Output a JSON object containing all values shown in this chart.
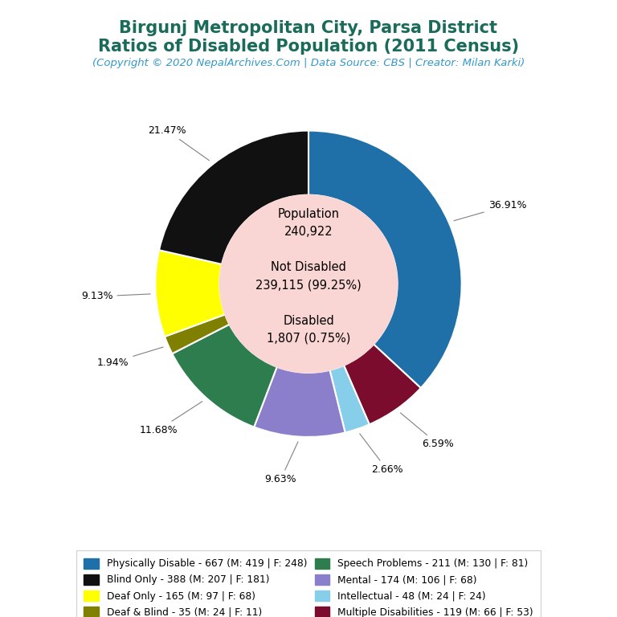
{
  "title_line1": "Birgunj Metropolitan City, Parsa District",
  "title_line2": "Ratios of Disabled Population (2011 Census)",
  "subtitle": "(Copyright © 2020 NepalArchives.Com | Data Source: CBS | Creator: Milan Karki)",
  "title_color": "#1a6b5a",
  "subtitle_color": "#3399cc",
  "total_population": 240922,
  "not_disabled": 239115,
  "not_disabled_pct": 99.25,
  "disabled": 1807,
  "disabled_pct": 0.75,
  "center_bg": "#f9d5d3",
  "slices": [
    {
      "label": "Physically Disable - 667 (M: 419 | F: 248)",
      "count": 667,
      "pct": 36.91,
      "color": "#1f6fa8"
    },
    {
      "label": "Multiple Disabilities - 119 (M: 66 | F: 53)",
      "count": 119,
      "pct": 6.59,
      "color": "#7b0c2e"
    },
    {
      "label": "Intellectual - 48 (M: 24 | F: 24)",
      "count": 48,
      "pct": 2.66,
      "color": "#87ceeb"
    },
    {
      "label": "Mental - 174 (M: 106 | F: 68)",
      "count": 174,
      "pct": 9.63,
      "color": "#8b7fcc"
    },
    {
      "label": "Speech Problems - 211 (M: 130 | F: 81)",
      "count": 211,
      "pct": 11.68,
      "color": "#2e7d4f"
    },
    {
      "label": "Deaf & Blind - 35 (M: 24 | F: 11)",
      "count": 35,
      "pct": 1.94,
      "color": "#808000"
    },
    {
      "label": "Deaf Only - 165 (M: 97 | F: 68)",
      "count": 165,
      "pct": 9.13,
      "color": "#ffff00"
    },
    {
      "label": "Blind Only - 388 (M: 207 | F: 181)",
      "count": 388,
      "pct": 21.47,
      "color": "#111111"
    }
  ],
  "legend_left": [
    {
      "label": "Physically Disable - 667 (M: 419 | F: 248)",
      "color": "#1f6fa8"
    },
    {
      "label": "Deaf Only - 165 (M: 97 | F: 68)",
      "color": "#ffff00"
    },
    {
      "label": "Speech Problems - 211 (M: 130 | F: 81)",
      "color": "#2e7d4f"
    },
    {
      "label": "Intellectual - 48 (M: 24 | F: 24)",
      "color": "#87ceeb"
    }
  ],
  "legend_right": [
    {
      "label": "Blind Only - 388 (M: 207 | F: 181)",
      "color": "#111111"
    },
    {
      "label": "Deaf & Blind - 35 (M: 24 | F: 11)",
      "color": "#808000"
    },
    {
      "label": "Mental - 174 (M: 106 | F: 68)",
      "color": "#8b7fcc"
    },
    {
      "label": "Multiple Disabilities - 119 (M: 66 | F: 53)",
      "color": "#7b0c2e"
    }
  ],
  "bg_color": "#ffffff"
}
